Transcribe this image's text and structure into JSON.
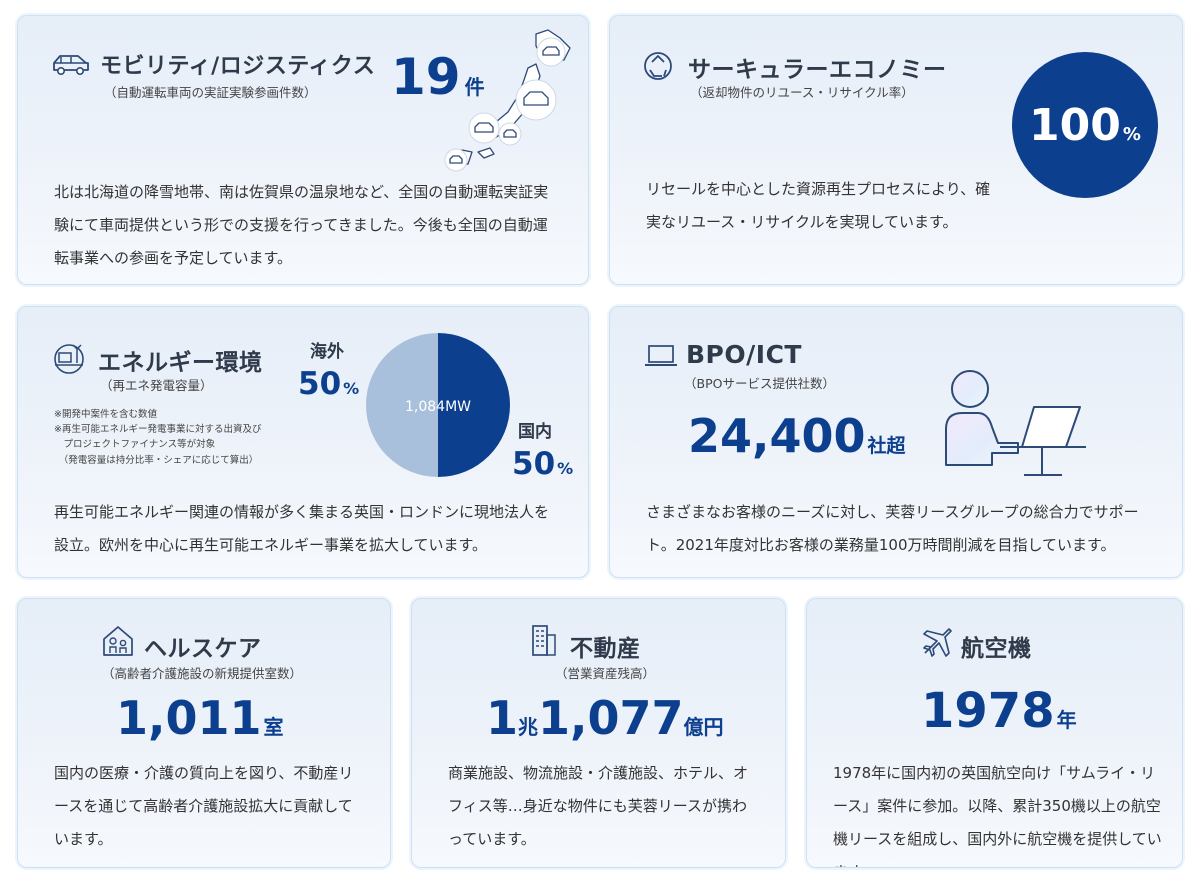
{
  "mobility": {
    "title": "モビリティ/ロジスティクス",
    "sub": "（自動運転車両の実証実験参画件数）",
    "value": "19",
    "unit": "件",
    "body": "北は北海道の降雪地帯、南は佐賀県の温泉地など、全国の自動運転実証実験にて車両提供という形での支援を行ってきました。今後も全国の自動運転事業への参画を予定しています。"
  },
  "circular": {
    "title": "サーキュラーエコノミー",
    "sub": "（返却物件のリユース・リサイクル率）",
    "value": "100",
    "unit": "%",
    "body": "リセールを中心とした資源再生プロセスにより、確実なリユース・リサイクルを実現しています。"
  },
  "energy": {
    "title": "エネルギー環境",
    "sub": "（再エネ発電容量）",
    "notes": [
      "※開発中案件を含む数値",
      "※再生可能エネルギー発電事業に対する出資及び",
      "　プロジェクトファイナンス等が対象",
      "　（発電容量は持分比率・シェアに応じて算出）"
    ],
    "overseas_label": "海外",
    "overseas_value": "50",
    "domestic_label": "国内",
    "domestic_value": "50",
    "percent": "%",
    "center_label": "1,084MW",
    "body": "再生可能エネルギー関連の情報が多く集まる英国・ロンドンに現地法人を設立。欧州を中心に再生可能エネルギー事業を拡大しています。",
    "colors": {
      "overseas": "#a9c0dc",
      "domestic": "#0d3f8f"
    }
  },
  "bpo": {
    "title": "BPO/ICT",
    "sub": "（BPOサービス提供社数）",
    "value": "24,400",
    "unit": "社超",
    "body": "さまざまなお客様のニーズに対し、芙蓉リースグループの総合力でサポート。2021年度対比お客様の業務量100万時間削減を目指しています。"
  },
  "healthcare": {
    "title": "ヘルスケア",
    "sub": "（高齢者介護施設の新規提供室数）",
    "value": "1,011",
    "unit": "室",
    "body": "国内の医療・介護の質向上を図り、不動産リースを通じて高齢者介護施設拡大に貢献しています。"
  },
  "realestate": {
    "title": "不動産",
    "sub": "（営業資産残高）",
    "value1": "1",
    "unit1": "兆",
    "value2": "1,077",
    "unit2": "億円",
    "body": "商業施設、物流施設・介護施設、ホテル、オフィス等…身近な物件にも芙蓉リースが携わっています。"
  },
  "aircraft": {
    "title": "航空機",
    "value": "1978",
    "unit": "年",
    "body": "1978年に国内初の英国航空向け「サムライ・リース」案件に参加。以降、累計350機以上の航空機リースを組成し、国内外に航空機を提供しています。"
  },
  "colors": {
    "accent": "#0d3f8f",
    "card_bg": "#e6eef8"
  },
  "icons": [
    "car-icon",
    "recycle-icon",
    "energy-icon",
    "laptop-icon",
    "house-people-icon",
    "building-icon",
    "airplane-icon"
  ]
}
